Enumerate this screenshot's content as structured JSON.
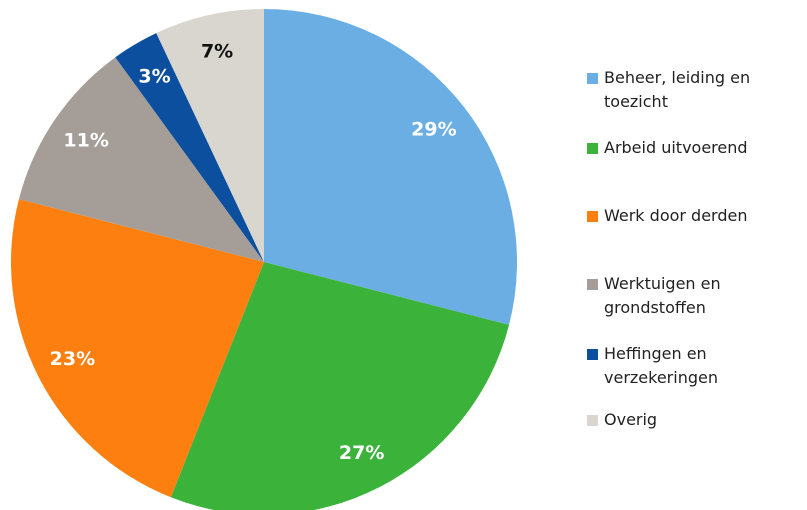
{
  "chart_data": {
    "type": "pie",
    "categories": [
      "Beheer, leiding en toezicht",
      "Arbeid uitvoerend",
      "Werk door derden",
      "Werktuigen en grondstoffen",
      "Heffingen en verzekeringen",
      "Overig"
    ],
    "values": [
      29,
      27,
      23,
      11,
      3,
      7
    ],
    "value_labels": [
      "29%",
      "27%",
      "23%",
      "11%",
      "3%",
      "7%"
    ],
    "colors": [
      "#6aaee4",
      "#3bb33b",
      "#fd7f0f",
      "#a59e98",
      "#0b4f9e",
      "#d9d6d0"
    ],
    "label_colors": [
      "#ffffff",
      "#ffffff",
      "#ffffff",
      "#ffffff",
      "#ffffff",
      "#111111"
    ],
    "legend": "right"
  }
}
